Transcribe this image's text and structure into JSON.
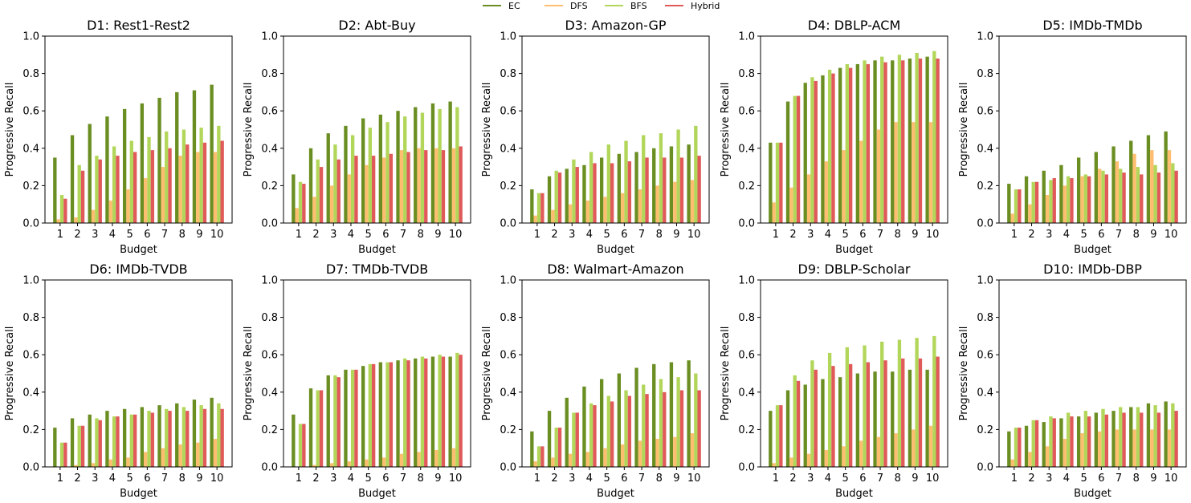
{
  "legend": {
    "placement": "top-center",
    "items": [
      {
        "label": "EC",
        "color": "#6b8e23"
      },
      {
        "label": "DFS",
        "color": "#fdbf6f"
      },
      {
        "label": "BFS",
        "color": "#b2d65a"
      },
      {
        "label": "Hybrid",
        "color": "#e05a5a"
      }
    ]
  },
  "chart_data": [
    {
      "type": "bar",
      "title": "D1: Rest1-Rest2",
      "xlabel": "Budget",
      "ylabel": "Progressive Recall",
      "ylim": [
        0,
        1.0
      ],
      "yticks": [
        "0.0",
        "0.2",
        "0.4",
        "0.6",
        "0.8",
        "1.0"
      ],
      "categories": [
        "1",
        "2",
        "3",
        "4",
        "5",
        "6",
        "7",
        "8",
        "9",
        "10"
      ],
      "series": [
        {
          "name": "EC",
          "values": [
            0.35,
            0.47,
            0.53,
            0.57,
            0.61,
            0.64,
            0.67,
            0.7,
            0.71,
            0.74
          ]
        },
        {
          "name": "DFS",
          "values": [
            0.02,
            0.03,
            0.07,
            0.12,
            0.18,
            0.24,
            0.3,
            0.36,
            0.38,
            0.38
          ]
        },
        {
          "name": "BFS",
          "values": [
            0.15,
            0.31,
            0.36,
            0.41,
            0.44,
            0.46,
            0.49,
            0.5,
            0.51,
            0.52
          ]
        },
        {
          "name": "Hybrid",
          "values": [
            0.13,
            0.28,
            0.34,
            0.36,
            0.38,
            0.39,
            0.4,
            0.42,
            0.43,
            0.44
          ]
        }
      ]
    },
    {
      "type": "bar",
      "title": "D2: Abt-Buy",
      "xlabel": "Budget",
      "ylabel": "Progressive Recall",
      "ylim": [
        0,
        1.0
      ],
      "yticks": [
        "0.0",
        "0.2",
        "0.4",
        "0.6",
        "0.8",
        "1.0"
      ],
      "categories": [
        "1",
        "2",
        "3",
        "4",
        "5",
        "6",
        "7",
        "8",
        "9",
        "10"
      ],
      "series": [
        {
          "name": "EC",
          "values": [
            0.26,
            0.4,
            0.48,
            0.52,
            0.56,
            0.58,
            0.6,
            0.62,
            0.64,
            0.65
          ]
        },
        {
          "name": "DFS",
          "values": [
            0.08,
            0.14,
            0.2,
            0.26,
            0.31,
            0.35,
            0.39,
            0.4,
            0.4,
            0.4
          ]
        },
        {
          "name": "BFS",
          "values": [
            0.22,
            0.34,
            0.42,
            0.47,
            0.51,
            0.54,
            0.57,
            0.59,
            0.61,
            0.62
          ]
        },
        {
          "name": "Hybrid",
          "values": [
            0.21,
            0.3,
            0.34,
            0.36,
            0.36,
            0.37,
            0.38,
            0.39,
            0.39,
            0.41
          ]
        }
      ]
    },
    {
      "type": "bar",
      "title": "D3: Amazon-GP",
      "xlabel": "Budget",
      "ylabel": "Progressive Recall",
      "ylim": [
        0,
        1.0
      ],
      "yticks": [
        "0.0",
        "0.2",
        "0.4",
        "0.6",
        "0.8",
        "1.0"
      ],
      "categories": [
        "1",
        "2",
        "3",
        "4",
        "5",
        "6",
        "7",
        "8",
        "9",
        "10"
      ],
      "series": [
        {
          "name": "EC",
          "values": [
            0.18,
            0.25,
            0.29,
            0.31,
            0.35,
            0.37,
            0.38,
            0.4,
            0.41,
            0.42
          ]
        },
        {
          "name": "DFS",
          "values": [
            0.04,
            0.07,
            0.1,
            0.12,
            0.14,
            0.16,
            0.18,
            0.2,
            0.22,
            0.23
          ]
        },
        {
          "name": "BFS",
          "values": [
            0.16,
            0.28,
            0.34,
            0.38,
            0.42,
            0.44,
            0.47,
            0.48,
            0.5,
            0.52
          ]
        },
        {
          "name": "Hybrid",
          "values": [
            0.16,
            0.27,
            0.3,
            0.32,
            0.32,
            0.33,
            0.35,
            0.35,
            0.35,
            0.36
          ]
        }
      ]
    },
    {
      "type": "bar",
      "title": "D4: DBLP-ACM",
      "xlabel": "Budget",
      "ylabel": "Progressive Recall",
      "ylim": [
        0,
        1.0
      ],
      "yticks": [
        "0.0",
        "0.2",
        "0.4",
        "0.6",
        "0.8",
        "1.0"
      ],
      "categories": [
        "1",
        "2",
        "3",
        "4",
        "5",
        "6",
        "7",
        "8",
        "9",
        "10"
      ],
      "series": [
        {
          "name": "EC",
          "values": [
            0.43,
            0.65,
            0.75,
            0.79,
            0.83,
            0.85,
            0.87,
            0.87,
            0.88,
            0.89
          ]
        },
        {
          "name": "DFS",
          "values": [
            0.11,
            0.19,
            0.26,
            0.33,
            0.39,
            0.44,
            0.5,
            0.54,
            0.54,
            0.54
          ]
        },
        {
          "name": "BFS",
          "values": [
            0.43,
            0.68,
            0.78,
            0.82,
            0.85,
            0.87,
            0.89,
            0.9,
            0.91,
            0.92
          ]
        },
        {
          "name": "Hybrid",
          "values": [
            0.43,
            0.68,
            0.76,
            0.8,
            0.83,
            0.85,
            0.86,
            0.87,
            0.88,
            0.88
          ]
        }
      ]
    },
    {
      "type": "bar",
      "title": "D5: IMDb-TMDb",
      "xlabel": "Budget",
      "ylabel": "Progressive Recall",
      "ylim": [
        0,
        1.0
      ],
      "yticks": [
        "0.0",
        "0.2",
        "0.4",
        "0.6",
        "0.8",
        "1.0"
      ],
      "categories": [
        "1",
        "2",
        "3",
        "4",
        "5",
        "6",
        "7",
        "8",
        "9",
        "10"
      ],
      "series": [
        {
          "name": "EC",
          "values": [
            0.21,
            0.25,
            0.28,
            0.31,
            0.35,
            0.38,
            0.41,
            0.44,
            0.47,
            0.49
          ]
        },
        {
          "name": "DFS",
          "values": [
            0.05,
            0.1,
            0.15,
            0.2,
            0.25,
            0.29,
            0.33,
            0.37,
            0.39,
            0.39
          ]
        },
        {
          "name": "BFS",
          "values": [
            0.18,
            0.22,
            0.23,
            0.25,
            0.26,
            0.28,
            0.29,
            0.3,
            0.31,
            0.32
          ]
        },
        {
          "name": "Hybrid",
          "values": [
            0.18,
            0.22,
            0.24,
            0.24,
            0.25,
            0.26,
            0.27,
            0.26,
            0.27,
            0.28
          ]
        }
      ]
    },
    {
      "type": "bar",
      "title": "D6: IMDb-TVDB",
      "xlabel": "Budget",
      "ylabel": "Progressive Recall",
      "ylim": [
        0,
        1.0
      ],
      "yticks": [
        "0.0",
        "0.2",
        "0.4",
        "0.6",
        "0.8",
        "1.0"
      ],
      "categories": [
        "1",
        "2",
        "3",
        "4",
        "5",
        "6",
        "7",
        "8",
        "9",
        "10"
      ],
      "series": [
        {
          "name": "EC",
          "values": [
            0.21,
            0.26,
            0.28,
            0.3,
            0.31,
            0.32,
            0.33,
            0.34,
            0.36,
            0.37
          ]
        },
        {
          "name": "DFS",
          "values": [
            0.0,
            0.01,
            0.02,
            0.04,
            0.05,
            0.08,
            0.1,
            0.12,
            0.13,
            0.15
          ]
        },
        {
          "name": "BFS",
          "values": [
            0.13,
            0.22,
            0.26,
            0.27,
            0.28,
            0.3,
            0.31,
            0.32,
            0.33,
            0.34
          ]
        },
        {
          "name": "Hybrid",
          "values": [
            0.13,
            0.22,
            0.25,
            0.27,
            0.28,
            0.29,
            0.3,
            0.3,
            0.31,
            0.31
          ]
        }
      ]
    },
    {
      "type": "bar",
      "title": "D7: TMDb-TVDB",
      "xlabel": "Budget",
      "ylabel": "Progressive Recall",
      "ylim": [
        0,
        1.0
      ],
      "yticks": [
        "0.0",
        "0.2",
        "0.4",
        "0.6",
        "0.8",
        "1.0"
      ],
      "categories": [
        "1",
        "2",
        "3",
        "4",
        "5",
        "6",
        "7",
        "8",
        "9",
        "10"
      ],
      "series": [
        {
          "name": "EC",
          "values": [
            0.28,
            0.42,
            0.49,
            0.52,
            0.54,
            0.56,
            0.57,
            0.58,
            0.59,
            0.59
          ]
        },
        {
          "name": "DFS",
          "values": [
            0.0,
            0.01,
            0.02,
            0.03,
            0.04,
            0.05,
            0.07,
            0.08,
            0.09,
            0.1
          ]
        },
        {
          "name": "BFS",
          "values": [
            0.23,
            0.41,
            0.49,
            0.52,
            0.55,
            0.56,
            0.58,
            0.59,
            0.6,
            0.61
          ]
        },
        {
          "name": "Hybrid",
          "values": [
            0.23,
            0.41,
            0.48,
            0.52,
            0.55,
            0.56,
            0.57,
            0.58,
            0.59,
            0.6
          ]
        }
      ]
    },
    {
      "type": "bar",
      "title": "D8: Walmart-Amazon",
      "xlabel": "Budget",
      "ylabel": "Progressive Recall",
      "ylim": [
        0,
        1.0
      ],
      "yticks": [
        "0.0",
        "0.2",
        "0.4",
        "0.6",
        "0.8",
        "1.0"
      ],
      "categories": [
        "1",
        "2",
        "3",
        "4",
        "5",
        "6",
        "7",
        "8",
        "9",
        "10"
      ],
      "series": [
        {
          "name": "EC",
          "values": [
            0.19,
            0.3,
            0.37,
            0.43,
            0.47,
            0.5,
            0.53,
            0.55,
            0.56,
            0.57
          ]
        },
        {
          "name": "DFS",
          "values": [
            0.03,
            0.05,
            0.07,
            0.08,
            0.1,
            0.12,
            0.14,
            0.15,
            0.16,
            0.18
          ]
        },
        {
          "name": "BFS",
          "values": [
            0.11,
            0.21,
            0.29,
            0.34,
            0.38,
            0.41,
            0.44,
            0.47,
            0.48,
            0.5
          ]
        },
        {
          "name": "Hybrid",
          "values": [
            0.11,
            0.21,
            0.29,
            0.33,
            0.35,
            0.38,
            0.39,
            0.4,
            0.41,
            0.41
          ]
        }
      ]
    },
    {
      "type": "bar",
      "title": "D9: DBLP-Scholar",
      "xlabel": "Budget",
      "ylabel": "Progressive Recall",
      "ylim": [
        0,
        1.0
      ],
      "yticks": [
        "0.0",
        "0.2",
        "0.4",
        "0.6",
        "0.8",
        "1.0"
      ],
      "categories": [
        "1",
        "2",
        "3",
        "4",
        "5",
        "6",
        "7",
        "8",
        "9",
        "10"
      ],
      "series": [
        {
          "name": "EC",
          "values": [
            0.3,
            0.41,
            0.44,
            0.47,
            0.48,
            0.5,
            0.51,
            0.51,
            0.52,
            0.52
          ]
        },
        {
          "name": "DFS",
          "values": [
            0.02,
            0.05,
            0.07,
            0.09,
            0.11,
            0.14,
            0.16,
            0.18,
            0.2,
            0.22
          ]
        },
        {
          "name": "BFS",
          "values": [
            0.33,
            0.49,
            0.57,
            0.61,
            0.64,
            0.65,
            0.67,
            0.68,
            0.69,
            0.7
          ]
        },
        {
          "name": "Hybrid",
          "values": [
            0.33,
            0.46,
            0.52,
            0.54,
            0.55,
            0.56,
            0.57,
            0.58,
            0.58,
            0.59
          ]
        }
      ]
    },
    {
      "type": "bar",
      "title": "D10: IMDb-DBP",
      "xlabel": "Budget",
      "ylabel": "Progressive Recall",
      "ylim": [
        0,
        1.0
      ],
      "yticks": [
        "0.0",
        "0.2",
        "0.4",
        "0.6",
        "0.8",
        "1.0"
      ],
      "categories": [
        "1",
        "2",
        "3",
        "4",
        "5",
        "6",
        "7",
        "8",
        "9",
        "10"
      ],
      "series": [
        {
          "name": "EC",
          "values": [
            0.19,
            0.22,
            0.24,
            0.26,
            0.27,
            0.29,
            0.3,
            0.32,
            0.34,
            0.35
          ]
        },
        {
          "name": "DFS",
          "values": [
            0.04,
            0.08,
            0.11,
            0.15,
            0.18,
            0.19,
            0.2,
            0.2,
            0.2,
            0.2
          ]
        },
        {
          "name": "BFS",
          "values": [
            0.21,
            0.25,
            0.27,
            0.29,
            0.3,
            0.31,
            0.32,
            0.32,
            0.33,
            0.34
          ]
        },
        {
          "name": "Hybrid",
          "values": [
            0.21,
            0.25,
            0.26,
            0.27,
            0.27,
            0.28,
            0.29,
            0.29,
            0.29,
            0.3
          ]
        }
      ]
    }
  ]
}
